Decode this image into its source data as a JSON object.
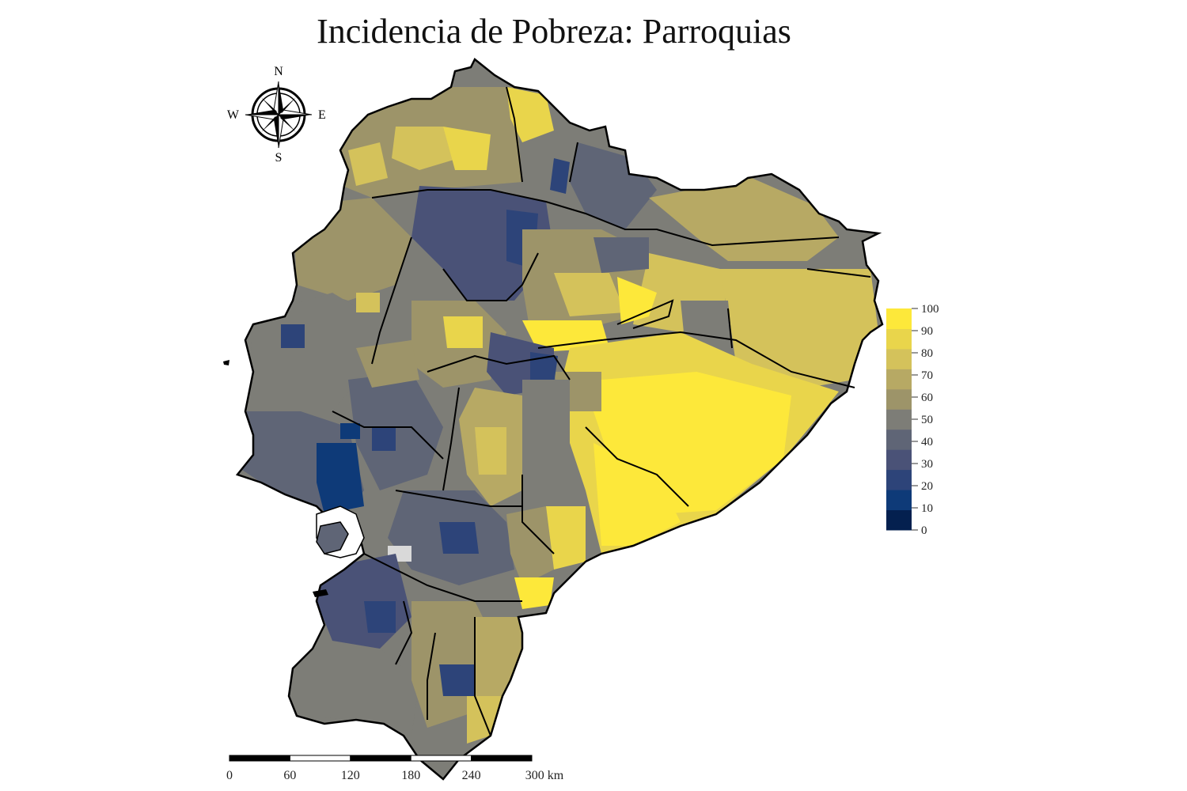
{
  "title": "Incidencia de Pobreza: Parroquias",
  "compass": {
    "north": "N",
    "south": "S",
    "east": "E",
    "west": "W"
  },
  "legend": {
    "ticks": [
      "0",
      "10",
      "20",
      "30",
      "40",
      "50",
      "60",
      "70",
      "80",
      "90",
      "100"
    ],
    "colors": [
      "#04204f",
      "#0e3a78",
      "#2d4479",
      "#4a5277",
      "#5f6576",
      "#7d7d77",
      "#9d9469",
      "#b7a964",
      "#d4c25b",
      "#e9d54b",
      "#fde83a"
    ]
  },
  "scalebar": {
    "labels": [
      "0",
      "60",
      "120",
      "180",
      "240",
      "300 km"
    ]
  },
  "colors": {
    "border": "#000000",
    "missing": "#d9d9d9"
  }
}
